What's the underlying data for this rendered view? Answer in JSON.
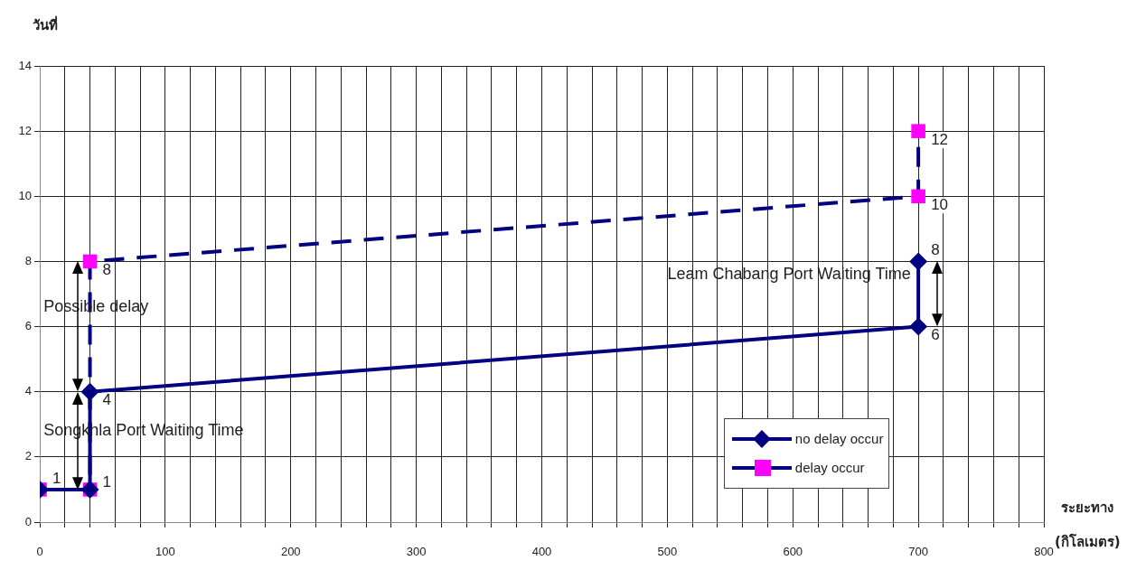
{
  "chart_data": {
    "type": "line",
    "ylabel": "วันที่",
    "xlabel": "ระยะทาง (กิโลเมตร)",
    "xlim": [
      0,
      800
    ],
    "xticks": [
      0,
      {
        "value": 20,
        "label": null
      },
      {
        "value": 40,
        "label": null
      },
      {
        "value": 60,
        "label": null
      },
      {
        "value": 80,
        "label": null
      },
      100,
      {
        "value": 120,
        "label": null
      },
      {
        "value": 140,
        "label": null
      },
      {
        "value": 160,
        "label": null
      },
      {
        "value": 180,
        "label": null
      },
      200,
      {
        "value": 220,
        "label": null
      },
      {
        "value": 240,
        "label": null
      },
      {
        "value": 260,
        "label": null
      },
      {
        "value": 280,
        "label": null
      },
      300,
      {
        "value": 320,
        "label": null
      },
      {
        "value": 340,
        "label": null
      },
      {
        "value": 360,
        "label": null
      },
      {
        "value": 380,
        "label": null
      },
      400,
      {
        "value": 420,
        "label": null
      },
      {
        "value": 440,
        "label": null
      },
      {
        "value": 460,
        "label": null
      },
      {
        "value": 480,
        "label": null
      },
      500,
      {
        "value": 520,
        "label": null
      },
      {
        "value": 540,
        "label": null
      },
      {
        "value": 560,
        "label": null
      },
      {
        "value": 580,
        "label": null
      },
      600,
      {
        "value": 620,
        "label": null
      },
      {
        "value": 640,
        "label": null
      },
      {
        "value": 660,
        "label": null
      },
      {
        "value": 680,
        "label": null
      },
      700,
      {
        "value": 720,
        "label": null
      },
      {
        "value": 740,
        "label": null
      },
      {
        "value": 760,
        "label": null
      },
      {
        "value": 780,
        "label": null
      },
      800
    ],
    "ylim": [
      0,
      14
    ],
    "yticks": [
      0,
      2,
      4,
      6,
      8,
      10,
      12,
      14
    ],
    "grid": true,
    "legend": "bottom right",
    "series": [
      {
        "name": "no delay occur",
        "color": "#000080",
        "marker": "diamond",
        "line_style": "solid",
        "x": [
          0,
          40,
          40,
          700,
          700
        ],
        "values": [
          1,
          1,
          4,
          6,
          8
        ],
        "value_labels": [
          null,
          null,
          "4",
          "6",
          "8"
        ]
      },
      {
        "name": "delay occur",
        "color": "#000080",
        "colors": [
          "#ff00ff",
          "#ff00ff",
          "#ff00ff",
          "#ff00ff",
          "#ff00ff"
        ],
        "marker": "square",
        "line_style": "dashed",
        "x": [
          0,
          40,
          40,
          700,
          700
        ],
        "values": [
          1,
          1,
          8,
          10,
          12
        ],
        "value_labels": [
          "1",
          "1",
          "8",
          "10",
          "12"
        ]
      }
    ],
    "annotations": [
      "Possible delay",
      "Songkhla Port Waiting Time",
      "Leam Chabang Port Waiting Time"
    ]
  }
}
